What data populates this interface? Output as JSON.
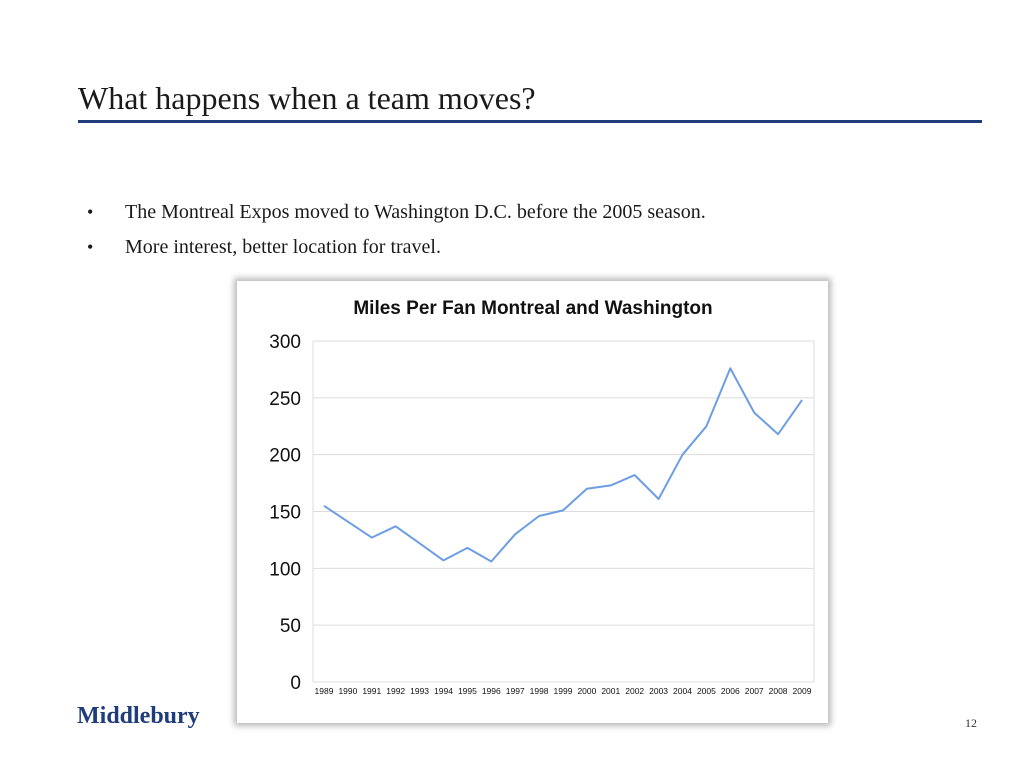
{
  "slide": {
    "title": "What happens when a team moves?",
    "bullets": [
      "The Montreal Expos moved to Washington D.C. before the 2005 season.",
      "More interest, better location for travel."
    ],
    "footer": {
      "brand": "Middlebury",
      "page_number": "12"
    }
  },
  "colors": {
    "title_rule": "#1f3d7a",
    "brand": "#1f3d7a",
    "series_line": "#6d9ee3",
    "grid": "#dcdcdc"
  },
  "chart_data": {
    "type": "line",
    "title": "Miles Per Fan Montreal and Washington",
    "xlabel": "",
    "ylabel": "",
    "ylim": [
      0,
      300
    ],
    "yticks": [
      0,
      50,
      100,
      150,
      200,
      250,
      300
    ],
    "grid": true,
    "legend": "none",
    "x": [
      "1989",
      "1990",
      "1991",
      "1992",
      "1993",
      "1994",
      "1995",
      "1996",
      "1997",
      "1998",
      "1999",
      "2000",
      "2001",
      "2002",
      "2003",
      "2004",
      "2005",
      "2006",
      "2007",
      "2008",
      "2009"
    ],
    "series": [
      {
        "values": [
          155,
          141,
          127,
          137,
          122,
          107,
          118,
          106,
          130,
          146,
          151,
          170,
          173,
          182,
          161,
          200,
          225,
          276,
          237,
          218,
          248
        ]
      }
    ]
  }
}
